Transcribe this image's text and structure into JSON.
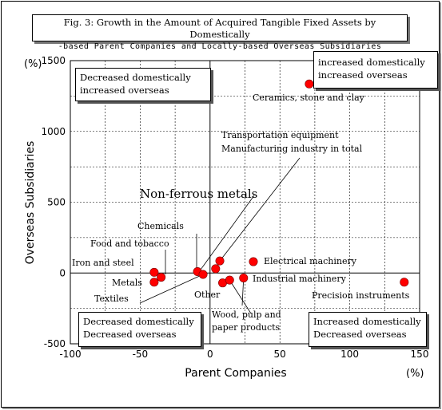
{
  "title": {
    "line1": "Fig. 3: Growth in the Amount of Acquired Tangible Fixed Assets by Domestically",
    "line2": "-based Parent Companies and Locally-based Overseas Subsidiaries"
  },
  "quadrants": {
    "top_left": [
      "Decreased domestically",
      "increased overseas"
    ],
    "top_right": [
      "increased domestically",
      "increased overseas"
    ],
    "bottom_left": [
      "Decreased domestically",
      "Decreased overseas"
    ],
    "bottom_right": [
      "Increased domestically",
      "Decreased overseas"
    ]
  },
  "chart_data": {
    "type": "scatter",
    "xlabel": "Parent Companies",
    "ylabel": "Overseas Subsidiaries",
    "x_unit": "(%)",
    "y_unit": "(%)",
    "xlim": [
      -100,
      150
    ],
    "ylim": [
      -500,
      1500
    ],
    "x_ticks": [
      -100,
      -50,
      0,
      50,
      100,
      150
    ],
    "y_ticks": [
      1500,
      1000,
      500,
      0,
      -500
    ],
    "grid": true,
    "marker_color": "#ff0000",
    "points": [
      {
        "x": -40,
        "y": 5
      },
      {
        "x": -40,
        "y": -65
      },
      {
        "x": -35,
        "y": -30
      },
      {
        "x": -9,
        "y": 10
      },
      {
        "x": -5,
        "y": -10
      },
      {
        "x": 4,
        "y": 30
      },
      {
        "x": 7,
        "y": 85
      },
      {
        "x": 9,
        "y": -70
      },
      {
        "x": 14,
        "y": -50
      },
      {
        "x": 24,
        "y": -35
      },
      {
        "x": 31,
        "y": 80
      },
      {
        "x": 71,
        "y": 1335
      },
      {
        "x": 139,
        "y": -65
      }
    ],
    "annotations": [
      {
        "text": "Ceramics, stone and clay"
      },
      {
        "text": "Transportation equipment"
      },
      {
        "text": "Manufacturing industry in total"
      },
      {
        "text": "Non-ferrous metals"
      },
      {
        "text": "Chemicals"
      },
      {
        "text": "Food and tobacco"
      },
      {
        "text": "Iron and steel"
      },
      {
        "text": "Metals"
      },
      {
        "text": "Textiles"
      },
      {
        "text": "Electrical machinery"
      },
      {
        "text": "Industrial machinery"
      },
      {
        "text": "Other"
      },
      {
        "text": "Wood, pulp and"
      },
      {
        "text": "paper products"
      },
      {
        "text": "Precision instruments"
      }
    ]
  }
}
